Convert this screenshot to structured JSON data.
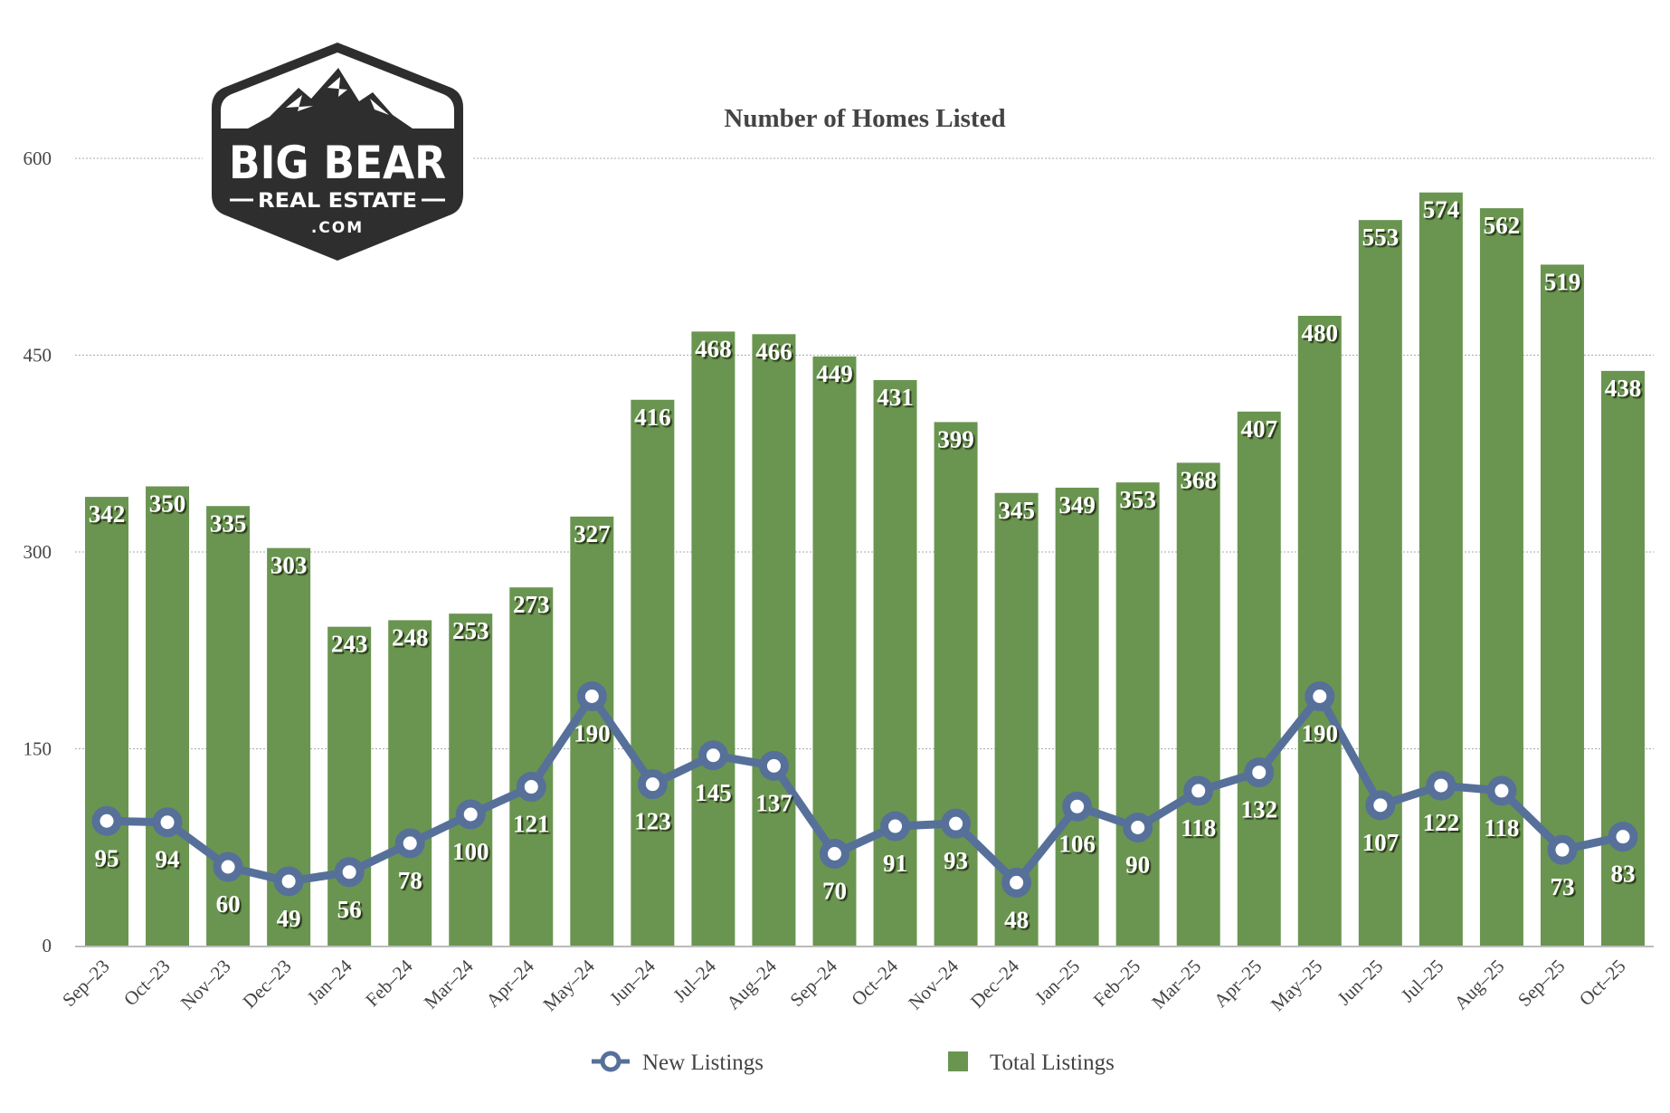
{
  "logo": {
    "line1": "BIG BEAR",
    "line2": "REAL ESTATE",
    "line3": ".COM"
  },
  "colors": {
    "bar": "#6a9550",
    "line": "#56709a",
    "grid": "#aaaaaa",
    "logo": "#2e2e2e"
  },
  "chart_data": {
    "type": "bar+line",
    "title": "Number of Homes Listed",
    "categories": [
      "Sep-23",
      "Oct-23",
      "Nov-23",
      "Dec-23",
      "Jan-24",
      "Feb-24",
      "Mar-24",
      "Apr-24",
      "May-24",
      "Jun-24",
      "Jul-24",
      "Aug-24",
      "Sep-24",
      "Oct-24",
      "Nov-24",
      "Dec-24",
      "Jan-25",
      "Feb-25",
      "Mar-25",
      "Apr-25",
      "May-25",
      "Jun-25",
      "Jul-25",
      "Aug-25",
      "Sep-25",
      "Oct-25"
    ],
    "series": [
      {
        "name": "New Listings",
        "type": "line",
        "values": [
          95,
          94,
          60,
          49,
          56,
          78,
          100,
          121,
          190,
          123,
          145,
          137,
          70,
          91,
          93,
          48,
          106,
          90,
          118,
          132,
          190,
          107,
          122,
          118,
          73,
          83
        ]
      },
      {
        "name": "Total Listings",
        "type": "bar",
        "values": [
          342,
          350,
          335,
          303,
          243,
          248,
          253,
          273,
          327,
          416,
          468,
          466,
          449,
          431,
          399,
          345,
          349,
          353,
          368,
          407,
          480,
          553,
          574,
          562,
          519,
          438
        ]
      }
    ],
    "yticks": [
      0,
      150,
      300,
      450,
      600
    ],
    "ylim": [
      0,
      600
    ],
    "grid": true,
    "legend": "bottom"
  }
}
